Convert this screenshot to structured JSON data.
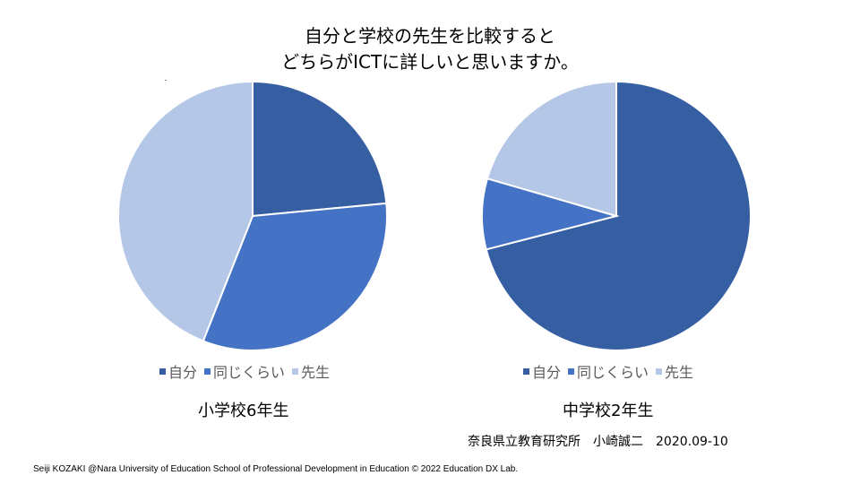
{
  "title": {
    "line1": "自分と学校の先生を比較すると",
    "line2": "どちらがICTに詳しいと思いますか。"
  },
  "chart_data": [
    {
      "type": "pie",
      "title": "小学校6年生",
      "categories": [
        "自分",
        "同じくらい",
        "先生"
      ],
      "values": [
        23.5,
        32.5,
        44
      ],
      "colors": [
        "#365FA3",
        "#4472C4",
        "#B4C7E7"
      ],
      "legend": "bottom"
    },
    {
      "type": "pie",
      "title": "中学校2年生",
      "categories": [
        "自分",
        "同じくらい",
        "先生"
      ],
      "values": [
        71,
        8.5,
        20.5
      ],
      "colors": [
        "#365FA3",
        "#4472C4",
        "#B4C7E7"
      ],
      "legend": "bottom"
    }
  ],
  "source": "奈良県立教育研究所　小崎誠二　2020.09-10",
  "footer": "Seiji KOZAKI @Nara University of Education School of Professional Development in Education  © 2022 Education DX Lab."
}
